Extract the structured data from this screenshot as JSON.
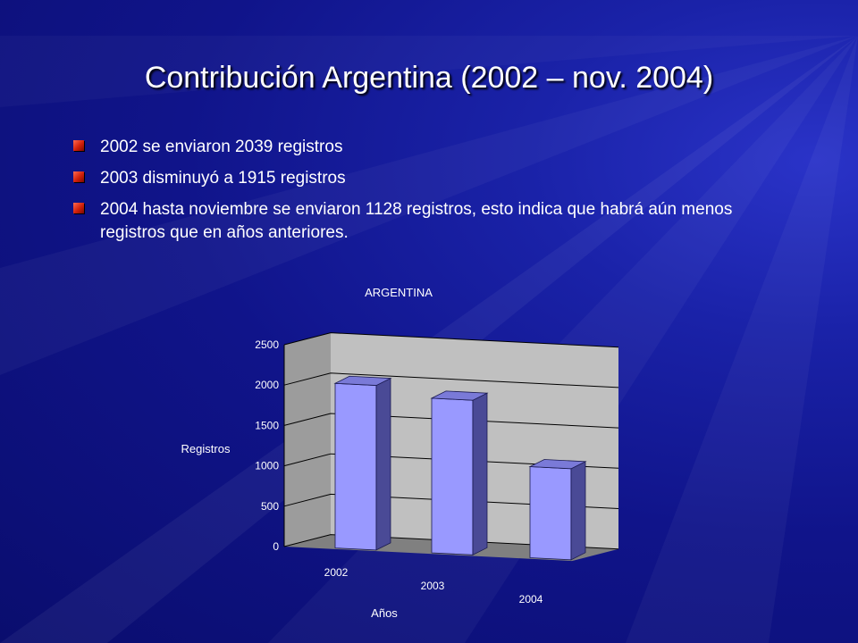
{
  "slide": {
    "title": "Contribución Argentina (2002 – nov. 2004)",
    "bullets": [
      "2002 se enviaron 2039 registros",
      "2003 disminuyó a 1915 registros",
      "2004 hasta noviembre se enviaron 1128 registros, esto indica que habrá aún menos registros que en años anteriores."
    ]
  },
  "colors": {
    "background": "#10148a",
    "bar_front": "#9999ff",
    "bar_side": "#4a4a96",
    "bar_top": "#7a7ad8",
    "wall": "#c0c0c0",
    "floor": "#808080"
  },
  "chart_data": {
    "type": "bar",
    "title": "ARGENTINA",
    "xlabel": "Años",
    "ylabel": "Registros",
    "categories": [
      "2002",
      "2003",
      "2004"
    ],
    "values": [
      2039,
      1915,
      1128
    ],
    "ylim": [
      0,
      2500
    ],
    "yticks": [
      "0",
      "500",
      "1000",
      "1500",
      "2000",
      "2500"
    ],
    "grid": true,
    "style": "3d"
  }
}
